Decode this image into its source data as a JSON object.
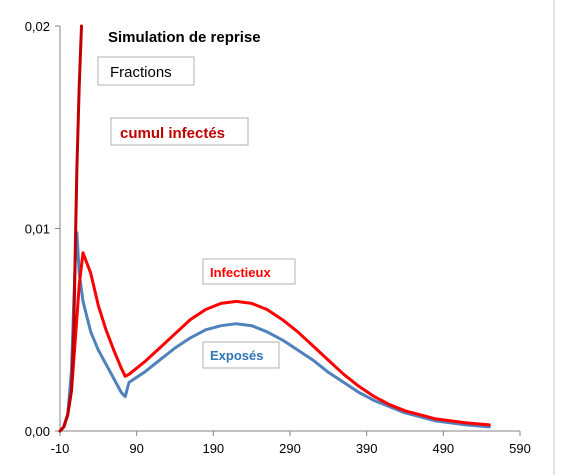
{
  "chart_data": {
    "type": "line",
    "title": "Simulation de reprise",
    "subtitle": "Fractions",
    "xlabel": "",
    "ylabel": "",
    "xlim": [
      -10,
      590
    ],
    "ylim": [
      0,
      0.02
    ],
    "x_ticks": [
      -10,
      90,
      190,
      290,
      390,
      490,
      590
    ],
    "x_tick_labels": [
      "-10",
      "90",
      "190",
      "290",
      "390",
      "490",
      "590"
    ],
    "y_ticks": [
      0,
      0.01,
      0.02
    ],
    "y_tick_labels": [
      "0,00",
      "0,01",
      "0,02"
    ],
    "grid": false,
    "legend": "none",
    "series": [
      {
        "name": "cumul infectés",
        "color": "#C00000",
        "x": [
          -10,
          -5,
          0,
          5,
          8,
          10,
          12,
          15,
          18
        ],
        "y": [
          0,
          0.0002,
          0.0008,
          0.002,
          0.005,
          0.009,
          0.013,
          0.017,
          0.02
        ]
      },
      {
        "name": "Infectieux",
        "color": "#FF0000",
        "x": [
          -10,
          -5,
          0,
          5,
          10,
          15,
          20,
          30,
          40,
          50,
          60,
          70,
          75,
          80,
          100,
          120,
          140,
          160,
          180,
          200,
          220,
          240,
          260,
          280,
          300,
          320,
          340,
          360,
          380,
          400,
          420,
          440,
          460,
          480,
          500,
          520,
          550
        ],
        "y": [
          0,
          0.0002,
          0.0008,
          0.002,
          0.0045,
          0.0072,
          0.0088,
          0.0078,
          0.0062,
          0.005,
          0.004,
          0.0031,
          0.0027,
          0.0028,
          0.0034,
          0.0041,
          0.0048,
          0.0055,
          0.006,
          0.0063,
          0.0064,
          0.0063,
          0.006,
          0.0055,
          0.0049,
          0.0042,
          0.0035,
          0.0028,
          0.0022,
          0.0017,
          0.0013,
          0.001,
          0.0008,
          0.0006,
          0.0005,
          0.0004,
          0.0003
        ]
      },
      {
        "name": "Exposés",
        "color": "#4F81BD",
        "x": [
          -10,
          -5,
          0,
          5,
          10,
          12,
          15,
          20,
          30,
          40,
          50,
          60,
          70,
          75,
          80,
          100,
          120,
          140,
          160,
          180,
          200,
          220,
          240,
          260,
          280,
          300,
          320,
          340,
          360,
          380,
          400,
          420,
          440,
          460,
          480,
          500,
          520,
          550
        ],
        "y": [
          0,
          0.0002,
          0.0008,
          0.003,
          0.0085,
          0.0098,
          0.0078,
          0.0064,
          0.0049,
          0.004,
          0.0033,
          0.0026,
          0.0019,
          0.0017,
          0.0024,
          0.0029,
          0.0035,
          0.0041,
          0.0046,
          0.005,
          0.0052,
          0.0053,
          0.0052,
          0.0049,
          0.0045,
          0.004,
          0.0035,
          0.0029,
          0.0024,
          0.0019,
          0.0015,
          0.0012,
          0.0009,
          0.0007,
          0.0005,
          0.0004,
          0.0003,
          0.0002
        ]
      }
    ]
  }
}
